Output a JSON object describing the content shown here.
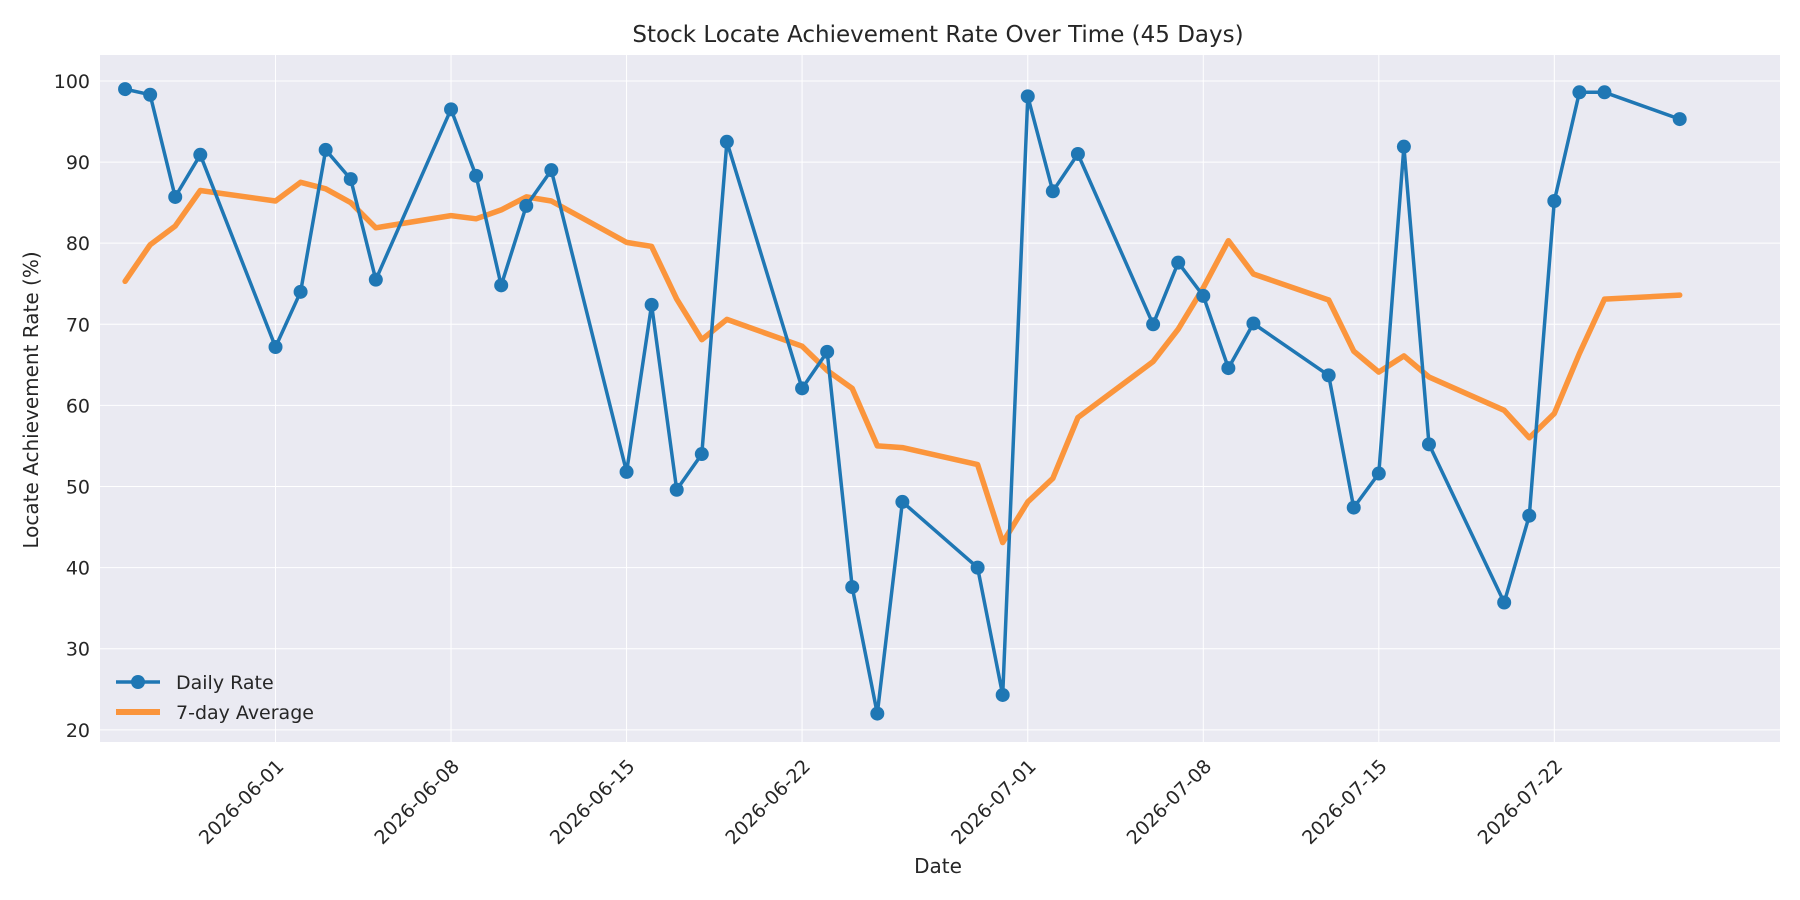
{
  "chart_data": {
    "type": "line",
    "title": "Stock Locate Achievement Rate Over Time (45 Days)",
    "xlabel": "Date",
    "ylabel": "Locate Achievement Rate (%)",
    "ylim": [
      18.5,
      103.2
    ],
    "xlim": [
      "2026-05-25",
      "2026-07-31"
    ],
    "x_tick_labels": [
      "2026-06-01",
      "2026-06-08",
      "2026-06-15",
      "2026-06-22",
      "2026-07-01",
      "2026-07-08",
      "2026-07-15",
      "2026-07-22"
    ],
    "y_ticks": [
      20,
      30,
      40,
      50,
      60,
      70,
      80,
      90,
      100
    ],
    "grid": true,
    "legend_position": "lower-left",
    "colors": {
      "daily": "#1f77b4",
      "average": "#ff7f0e",
      "background": "#eaeaf2",
      "grid": "#ffffff"
    },
    "x": [
      "2026-05-26",
      "2026-05-27",
      "2026-05-28",
      "2026-05-29",
      "2026-06-01",
      "2026-06-02",
      "2026-06-03",
      "2026-06-04",
      "2026-06-05",
      "2026-06-08",
      "2026-06-09",
      "2026-06-10",
      "2026-06-11",
      "2026-06-12",
      "2026-06-15",
      "2026-06-16",
      "2026-06-17",
      "2026-06-18",
      "2026-06-19",
      "2026-06-22",
      "2026-06-23",
      "2026-06-24",
      "2026-06-25",
      "2026-06-26",
      "2026-06-29",
      "2026-06-30",
      "2026-07-01",
      "2026-07-02",
      "2026-07-03",
      "2026-07-06",
      "2026-07-07",
      "2026-07-08",
      "2026-07-09",
      "2026-07-10",
      "2026-07-13",
      "2026-07-14",
      "2026-07-15",
      "2026-07-16",
      "2026-07-17",
      "2026-07-20",
      "2026-07-21",
      "2026-07-22",
      "2026-07-23",
      "2026-07-24",
      "2026-07-27"
    ],
    "series": [
      {
        "name": "Daily Rate",
        "values": [
          99.0,
          98.3,
          85.7,
          90.9,
          67.2,
          74.0,
          91.5,
          87.9,
          75.5,
          96.5,
          88.3,
          74.8,
          84.6,
          89.0,
          51.8,
          72.4,
          49.6,
          54.0,
          92.5,
          62.1,
          66.6,
          37.6,
          22.0,
          48.1,
          40.0,
          24.3,
          98.1,
          86.4,
          91.0,
          70.0,
          77.6,
          73.5,
          64.6,
          70.1,
          63.7,
          47.4,
          51.6,
          91.9,
          55.2,
          35.7,
          46.4,
          85.2,
          98.6,
          98.6,
          95.3
        ]
      },
      {
        "name": "7-day Average",
        "values": [
          75.3,
          79.8,
          82.1,
          86.5,
          85.2,
          87.5,
          86.7,
          85.0,
          81.9,
          83.4,
          83.0,
          84.1,
          85.7,
          85.2,
          80.1,
          79.6,
          73.1,
          68.1,
          70.6,
          67.3,
          64.3,
          62.1,
          55.0,
          54.8,
          52.7,
          43.1,
          48.1,
          51.0,
          58.5,
          65.4,
          69.4,
          74.5,
          80.3,
          76.2,
          73.0,
          66.7,
          64.1,
          66.1,
          63.5,
          59.4,
          56.0,
          59.0,
          66.4,
          73.1,
          73.6
        ]
      }
    ]
  }
}
